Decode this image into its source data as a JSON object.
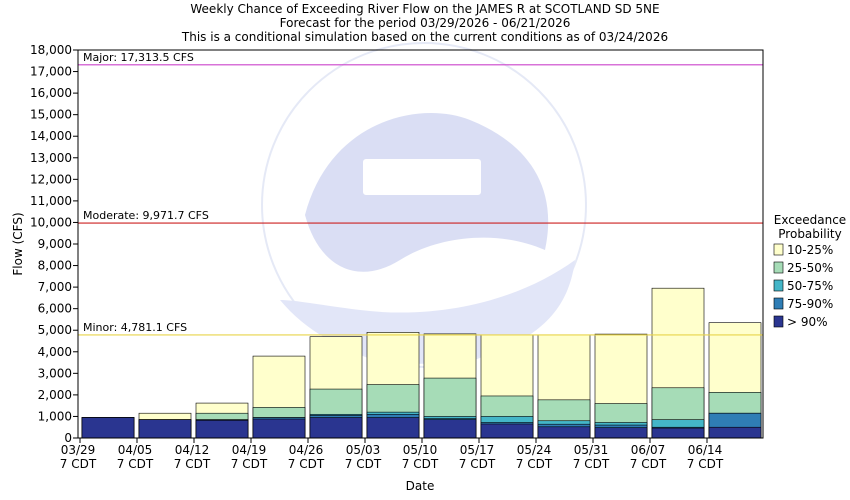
{
  "chart_data": {
    "type": "bar",
    "title": "Weekly Chance of Exceeding River Flow on the JAMES R at SCOTLAND SD 5NE",
    "subtitle_1": "Forecast for the period 03/29/2026 - 06/21/2026",
    "subtitle_2": "This is a conditional simulation based on the current conditions as of 03/24/2026",
    "xlabel": "Date",
    "ylabel": "Flow (CFS)",
    "ylim": [
      0,
      18000
    ],
    "y_ticks": [
      "0",
      "1,000",
      "2,000",
      "3,000",
      "4,000",
      "5,000",
      "6,000",
      "7,000",
      "8,000",
      "9,000",
      "10,000",
      "11,000",
      "12,000",
      "13,000",
      "14,000",
      "15,000",
      "16,000",
      "17,000",
      "18,000"
    ],
    "y_tick_values": [
      0,
      1000,
      2000,
      3000,
      4000,
      5000,
      6000,
      7000,
      8000,
      9000,
      10000,
      11000,
      12000,
      13000,
      14000,
      15000,
      16000,
      17000,
      18000
    ],
    "categories": [
      "03/29",
      "04/05",
      "04/12",
      "04/19",
      "04/26",
      "05/03",
      "05/10",
      "05/17",
      "05/24",
      "05/31",
      "06/07",
      "06/14"
    ],
    "category_sub": "7 CDT",
    "grid": false,
    "legend_title_1": "Exceedance",
    "legend_title_2": "Probability",
    "legend_placement": "right",
    "series": [
      {
        "name": "> 90%",
        "color": "#2a3590",
        "values": [
          950,
          850,
          820,
          880,
          950,
          950,
          850,
          650,
          520,
          480,
          460,
          500
        ]
      },
      {
        "name": "75-90%",
        "color": "#2f7db5",
        "values": [
          950,
          850,
          850,
          950,
          1050,
          1100,
          900,
          720,
          640,
          600,
          500,
          1150
        ]
      },
      {
        "name": "50-75%",
        "color": "#44b6c8",
        "values": [
          950,
          850,
          850,
          950,
          1100,
          1200,
          1000,
          1000,
          800,
          720,
          850,
          1150
        ]
      },
      {
        "name": "25-50%",
        "color": "#a6dcb7",
        "values": [
          950,
          850,
          1150,
          1420,
          2270,
          2480,
          2780,
          1950,
          1770,
          1600,
          2330,
          2120
        ]
      },
      {
        "name": "10-25%",
        "color": "#ffffcc",
        "values": [
          950,
          1150,
          1620,
          3800,
          4700,
          4900,
          4830,
          4780,
          4770,
          4820,
          6950,
          5350
        ]
      }
    ],
    "reference_lines": [
      {
        "label": "Major: 17,313.5 CFS",
        "value": 17313.5,
        "color": "#cc44cc"
      },
      {
        "label": "Moderate: 9,971.7 CFS",
        "value": 9971.7,
        "color": "#cc2222"
      },
      {
        "label": "Minor: 4,781.1 CFS",
        "value": 4781.1,
        "color": "#e8d44a"
      }
    ],
    "watermark": "NATIONAL OCEANIC AND ATMOSPHERIC ADMINISTRATION NOAA"
  }
}
